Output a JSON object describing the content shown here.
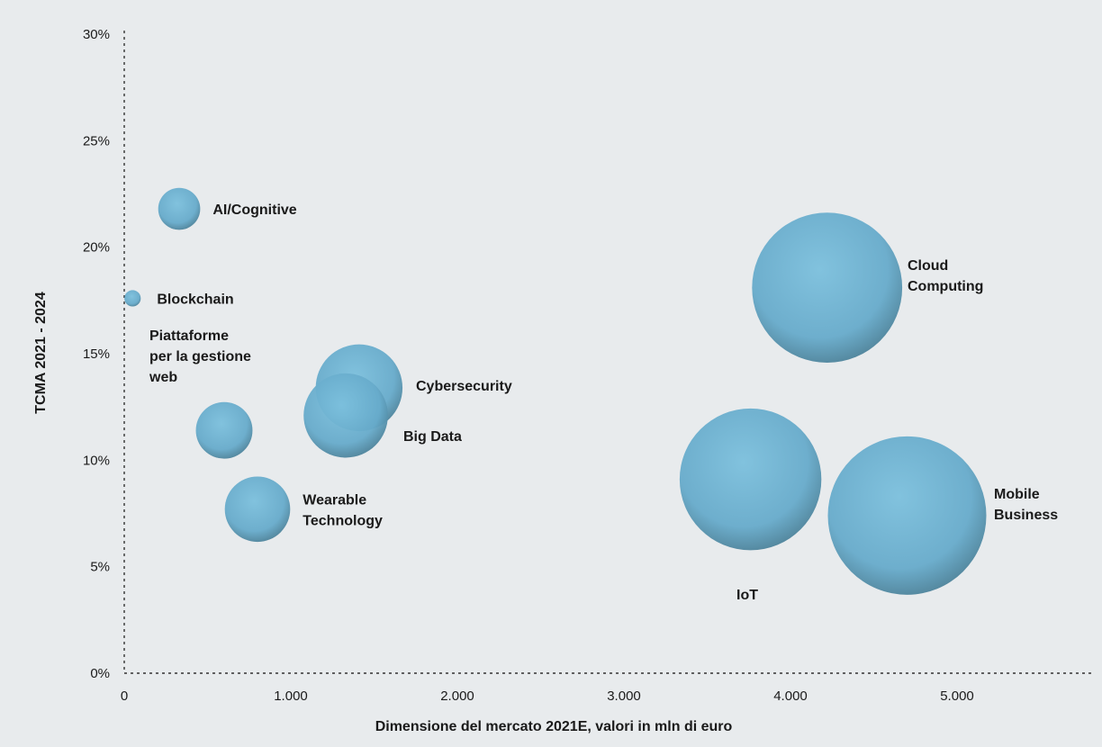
{
  "chart_data": {
    "type": "scatter",
    "xlabel": "Dimensione del mercato 2021E, valori in mln di euro",
    "ylabel": "TCMA 2021 - 2024",
    "xlim": [
      0,
      5900
    ],
    "ylim": [
      0,
      30
    ],
    "x_ticks": [
      0,
      1000,
      2000,
      3000,
      4000,
      5000
    ],
    "x_tick_labels": [
      "0",
      "1.000",
      "2.000",
      "3.000",
      "4.000",
      "5.000"
    ],
    "y_ticks": [
      0,
      5,
      10,
      15,
      20,
      25,
      30
    ],
    "y_tick_labels": [
      "0%",
      "5%",
      "10%",
      "15%",
      "20%",
      "25%",
      "30%"
    ],
    "grid": false,
    "bubble_color": "#6aafcf",
    "bubble_shadow_color": "#4a7f96",
    "points": [
      {
        "label": "AI/Cognitive",
        "x": 330,
        "y": 21.8,
        "size": 330
      },
      {
        "label": "Blockchain",
        "x": 50,
        "y": 17.6,
        "size": 50
      },
      {
        "label": "Piattaforme per la gestione web",
        "x": 600,
        "y": 11.4,
        "size": 600
      },
      {
        "label": "Wearable Technology",
        "x": 800,
        "y": 7.7,
        "size": 800
      },
      {
        "label": "Big Data",
        "x": 1330,
        "y": 12.1,
        "size": 1330
      },
      {
        "label": "Cybersecurity",
        "x": 1410,
        "y": 13.4,
        "size": 1410
      },
      {
        "label": "Cloud Computing",
        "x": 4220,
        "y": 18.1,
        "size": 4220
      },
      {
        "label": "IoT",
        "x": 3760,
        "y": 9.1,
        "size": 3760
      },
      {
        "label": "Mobile Business",
        "x": 4700,
        "y": 7.4,
        "size": 4700
      }
    ]
  }
}
